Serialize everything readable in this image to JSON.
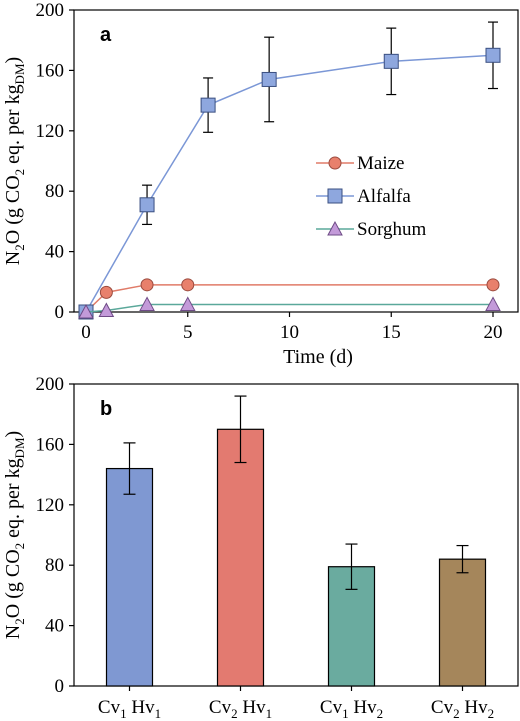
{
  "figure": {
    "panel_a_label": "a",
    "panel_b_label": "b",
    "ylabel_main": "N",
    "ylabel_sub1": "2",
    "ylabel_mid": "O (g CO",
    "ylabel_sub2": "2",
    "ylabel_mid2": " eq. per kg",
    "ylabel_sub3": "DM",
    "ylabel_end": ")"
  },
  "chart_data": [
    {
      "type": "line",
      "xlabel": "Time (d)",
      "ylabel": "N2O (g CO2 eq. per kgDM)",
      "xlim": [
        0,
        20
      ],
      "ylim": [
        0,
        200
      ],
      "xticks": [
        0,
        5,
        10,
        15,
        20
      ],
      "yticks": [
        0,
        40,
        80,
        120,
        160,
        200
      ],
      "grid": false,
      "legend": "center-right",
      "series": [
        {
          "name": "Maize",
          "marker": "circle",
          "color": "#e8806c",
          "x": [
            0,
            1,
            3,
            5,
            20
          ],
          "y": [
            0,
            13,
            18,
            18,
            18
          ],
          "err": [
            0,
            0,
            0,
            0,
            0
          ]
        },
        {
          "name": "Alfalfa",
          "marker": "square",
          "color": "#8ea7de",
          "x": [
            0,
            3,
            6,
            9,
            15,
            20
          ],
          "y": [
            0,
            71,
            137,
            154,
            166,
            170
          ],
          "err": [
            0,
            13,
            18,
            28,
            22,
            22
          ]
        },
        {
          "name": "Sorghum",
          "marker": "triangle",
          "color": "#c39ad9",
          "x": [
            0,
            1,
            3,
            5,
            20
          ],
          "y": [
            0,
            1,
            5,
            5,
            5
          ],
          "err": [
            0,
            0,
            0,
            0,
            0
          ]
        }
      ],
      "line_colors": {
        "Maize": "#e07b68",
        "Alfalfa": "#7b97d6",
        "Sorghum": "#5aa89a"
      }
    },
    {
      "type": "bar",
      "ylabel": "N2O (g CO2 eq. per kgDM)",
      "ylim": [
        0,
        200
      ],
      "yticks": [
        0,
        40,
        80,
        120,
        160,
        200
      ],
      "grid": false,
      "categories": [
        {
          "c": "Cv",
          "c_sub": "1",
          "h": " Hv",
          "h_sub": "1"
        },
        {
          "c": "Cv",
          "c_sub": "2",
          "h": " Hv",
          "h_sub": "1"
        },
        {
          "c": "Cv",
          "c_sub": "1",
          "h": " Hv",
          "h_sub": "2"
        },
        {
          "c": "Cv",
          "c_sub": "2",
          "h": " Hv",
          "h_sub": "2"
        }
      ],
      "values": [
        144,
        170,
        79,
        84
      ],
      "err": [
        17,
        22,
        15,
        9
      ],
      "colors": [
        "#7f98d2",
        "#e37a70",
        "#6aab9f",
        "#a5865b"
      ]
    }
  ]
}
